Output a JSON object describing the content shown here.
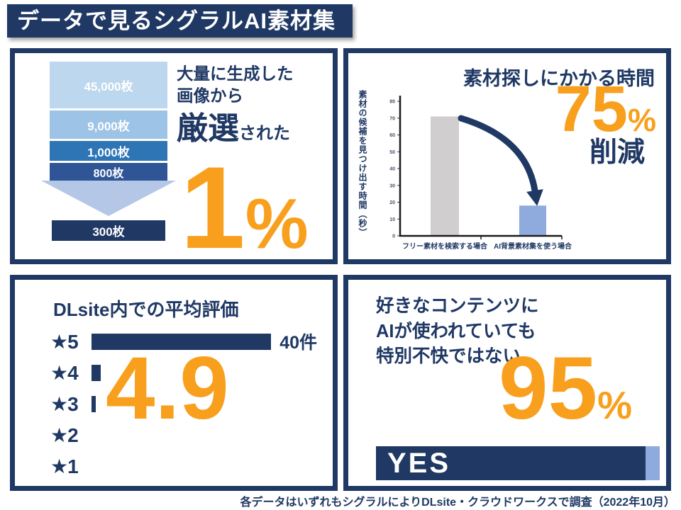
{
  "page": {
    "title": "データで見るシグラルAI素材集",
    "footer": "各データはいずれもシグラルによりDLsite・クラウドワークスで調査（2022年10月）"
  },
  "colors": {
    "navy": "#1F3864",
    "orange": "#F8A01D",
    "funnel_stem": "#CDD5EC",
    "funnel_arrow": "#B4C7E7",
    "gray_bar": "#D0CECE",
    "blue_bar": "#8FAADC",
    "yes_cap": "#8FAADC"
  },
  "panel1": {
    "line1": "大量に生成した",
    "line2": "画像から",
    "emphasis": "厳選",
    "emphasis_suffix": "された",
    "big_number": "1",
    "big_unit": "%"
  },
  "panel2": {
    "title": "素材探しにかかる時間",
    "big_number": "75",
    "big_unit": "%",
    "sub": "削減"
  },
  "panel3": {
    "title": "DLsite内での平均評価",
    "average": "4.9"
  },
  "panel4": {
    "line1": "好きなコンテンツに",
    "line2": "AIが使われていても",
    "line3": "特別不快ではない",
    "big_number": "95",
    "big_unit": "%",
    "bar_label": "YES"
  },
  "chart_data": [
    {
      "type": "funnel",
      "title": "大量に生成した画像から厳選された1%",
      "categories": [
        "45,000枚",
        "9,000枚",
        "1,000枚",
        "800枚",
        "300枚"
      ],
      "values": [
        45000,
        9000,
        1000,
        800,
        300
      ],
      "colors": [
        "#BDD7EE",
        "#9DC3E6",
        "#2E75B6",
        "#2F5597",
        "#1F3864"
      ],
      "highlight": "1%"
    },
    {
      "type": "bar",
      "title": "素材探しにかかる時間",
      "categories": [
        "フリー素材を検索する場合",
        "AI背景素材集を使う場合"
      ],
      "values": [
        71,
        18
      ],
      "bar_colors": [
        "#D0CECE",
        "#8FAADC"
      ],
      "xlabel": "",
      "ylabel": "素材の候補を見つけ出す時間（秒）",
      "ylim": [
        0,
        80
      ],
      "ytick_step": 10,
      "yticks": [
        0,
        10,
        20,
        30,
        40,
        50,
        60,
        70,
        80
      ],
      "grid": false,
      "legend": "none",
      "annotation": "75%削減"
    },
    {
      "type": "bar",
      "orientation": "horizontal",
      "title": "DLsite内での平均評価",
      "categories": [
        "★5",
        "★4",
        "★3",
        "★2",
        "★1"
      ],
      "values": [
        40,
        2,
        1,
        0,
        0
      ],
      "value_labels": [
        "40件",
        "",
        "",
        "",
        ""
      ],
      "annotation": "4.9",
      "bar_color": "#1F3864"
    },
    {
      "type": "bar",
      "orientation": "horizontal",
      "title": "好きなコンテンツにAIが使われていても特別不快ではない",
      "categories": [
        "YES"
      ],
      "series": [
        {
          "name": "YES",
          "values": [
            95
          ]
        },
        {
          "name": "",
          "values": [
            5
          ]
        }
      ],
      "xlim": [
        0,
        100
      ],
      "annotation": "95%"
    }
  ]
}
